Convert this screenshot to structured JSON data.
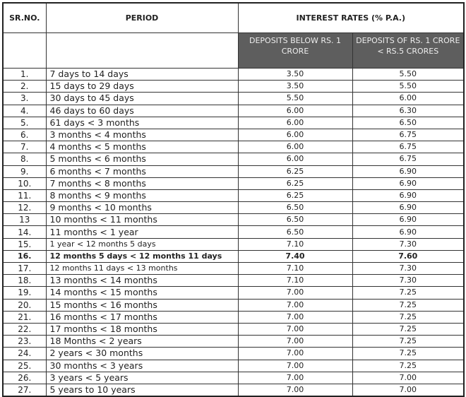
{
  "headers": {
    "sr": "SR.NO.",
    "period": "PERIOD",
    "rates": "INTEREST RATES (% P.A.)",
    "col1": "DEPOSITS BELOW RS. 1 CRORE",
    "col2": "DEPOSITS OF RS. 1 CRORE  < RS.5 CRORES"
  },
  "rows": [
    {
      "sr": "1.",
      "period": "7 days to 14 days",
      "a": "3.50",
      "b": "5.50"
    },
    {
      "sr": "2.",
      "period": "15 days to 29 days",
      "a": "3.50",
      "b": "5.50"
    },
    {
      "sr": "3.",
      "period": "30 days to 45 days",
      "a": "5.50",
      "b": "6.00"
    },
    {
      "sr": "4.",
      "period": "46 days to 60 days",
      "a": "6.00",
      "b": "6.30"
    },
    {
      "sr": "5.",
      "period": "61 days < 3 months",
      "a": "6.00",
      "b": "6.50"
    },
    {
      "sr": "6.",
      "period": "3 months < 4 months",
      "a": "6.00",
      "b": "6.75"
    },
    {
      "sr": "7.",
      "period": "4 months < 5 months",
      "a": "6.00",
      "b": "6.75"
    },
    {
      "sr": "8.",
      "period": "5 months < 6 months",
      "a": "6.00",
      "b": "6.75"
    },
    {
      "sr": "9.",
      "period": "6 months < 7 months",
      "a": "6.25",
      "b": "6.90"
    },
    {
      "sr": "10.",
      "period": "7 months < 8 months",
      "a": "6.25",
      "b": "6.90"
    },
    {
      "sr": "11.",
      "period": "8 months < 9 months",
      "a": "6.25",
      "b": "6.90"
    },
    {
      "sr": "12.",
      "period": "9 months < 10 months",
      "a": "6.50",
      "b": "6.90"
    },
    {
      "sr": "13",
      "period": "10 months < 11 months",
      "a": "6.50",
      "b": "6.90"
    },
    {
      "sr": "14.",
      "period": "11 months < 1 year",
      "a": "6.50",
      "b": "6.90"
    },
    {
      "sr": "15.",
      "period": "1 year < 12 months 5 days",
      "a": "7.10",
      "b": "7.30",
      "small": true
    },
    {
      "sr": "16.",
      "period": "12 months 5 days < 12 months 11 days",
      "a": "7.40",
      "b": "7.60",
      "bold": true
    },
    {
      "sr": "17.",
      "period": "12 months 11 days < 13 months",
      "a": "7.10",
      "b": "7.30",
      "small": true
    },
    {
      "sr": "18.",
      "period": "13 months < 14 months",
      "a": "7.10",
      "b": "7.30"
    },
    {
      "sr": "19.",
      "period": "14 months < 15 months",
      "a": "7.00",
      "b": "7.25"
    },
    {
      "sr": "20.",
      "period": "15 months < 16 months",
      "a": "7.00",
      "b": "7.25"
    },
    {
      "sr": "21.",
      "period": "16 months < 17 months",
      "a": "7.00",
      "b": "7.25"
    },
    {
      "sr": "22.",
      "period": "17 months < 18 months",
      "a": "7.00",
      "b": "7.25"
    },
    {
      "sr": "23.",
      "period": "18 Months < 2 years",
      "a": "7.00",
      "b": "7.25"
    },
    {
      "sr": "24.",
      "period": "2 years < 30 months",
      "a": "7.00",
      "b": "7.25"
    },
    {
      "sr": "25.",
      "period": "30 months < 3 years",
      "a": "7.00",
      "b": "7.25"
    },
    {
      "sr": "26.",
      "period": "3 years < 5 years",
      "a": "7.00",
      "b": "7.00"
    },
    {
      "sr": "27.",
      "period": "5 years to 10 years",
      "a": "7.00",
      "b": "7.00"
    }
  ],
  "colors": {
    "subheader_bg": "#5e5e5e",
    "border": "#333333"
  }
}
